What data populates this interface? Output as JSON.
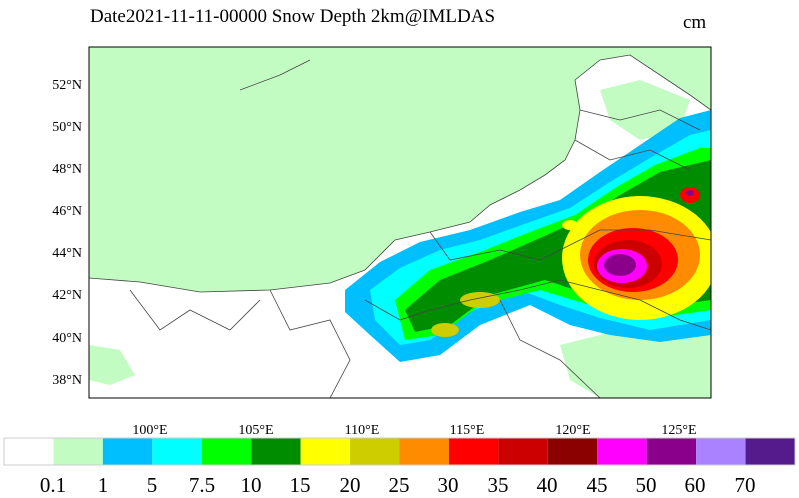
{
  "title": "Date2021-11-11-00000 Snow Depth 2km@IMLDAS",
  "units": "cm",
  "map": {
    "lat_labels": [
      "52°N",
      "50°N",
      "48°N",
      "46°N",
      "44°N",
      "42°N",
      "40°N",
      "38°N"
    ],
    "lon_labels": [
      "100°E",
      "105°E",
      "110°E",
      "115°E",
      "120°E",
      "125°E"
    ]
  },
  "colorbar": {
    "labels": [
      "0.1",
      "1",
      "5",
      "7.5",
      "10",
      "15",
      "20",
      "25",
      "30",
      "35",
      "40",
      "45",
      "50",
      "60",
      "70"
    ],
    "colors": [
      "#ffffff",
      "#c2fcc2",
      "#00bfff",
      "#00ffff",
      "#00ff00",
      "#008c00",
      "#ffff00",
      "#cdcd00",
      "#ff8c00",
      "#ff0000",
      "#cd0000",
      "#8b0000",
      "#ff00ff",
      "#8b008b",
      "#aa82ff",
      "#551a8b"
    ]
  }
}
